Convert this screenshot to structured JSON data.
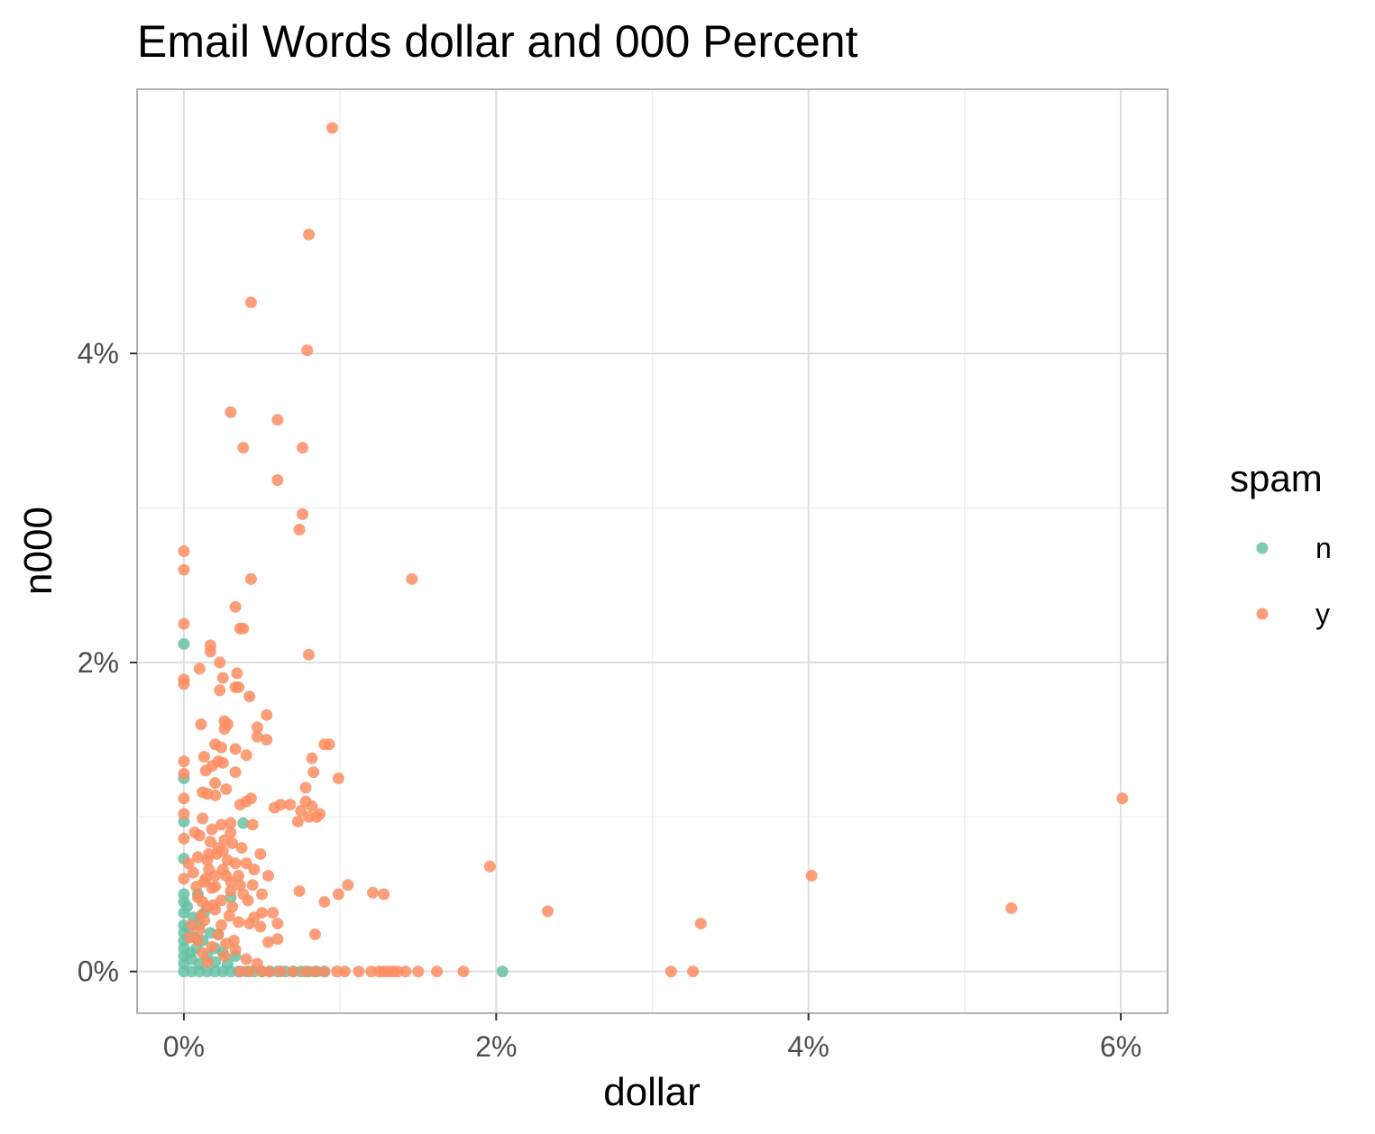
{
  "chart_data": {
    "type": "scatter",
    "title": "Email Words dollar and 000 Percent",
    "xlabel": "dollar",
    "ylabel": "n000",
    "xlim": [
      -0.3,
      6.3
    ],
    "ylim": [
      -0.27,
      5.71
    ],
    "x_ticks": [
      0,
      2,
      4,
      6
    ],
    "x_tick_labels": [
      "0%",
      "2%",
      "4%",
      "6%"
    ],
    "y_ticks": [
      0,
      2,
      4
    ],
    "y_tick_labels": [
      "0%",
      "2%",
      "4%"
    ],
    "grid": true,
    "legend": {
      "title": "spam",
      "position": "right",
      "entries": [
        {
          "label": "n",
          "color": "#66c2a5"
        },
        {
          "label": "y",
          "color": "#fc8d62"
        }
      ]
    },
    "series": [
      {
        "name": "n",
        "color": "#66c2a5",
        "points": [
          [
            0,
            2.12
          ],
          [
            0,
            1.25
          ],
          [
            0,
            0.97
          ],
          [
            0,
            0.73
          ],
          [
            0,
            0.5
          ],
          [
            0,
            0.45
          ],
          [
            0,
            0.38
          ],
          [
            0,
            0.3
          ],
          [
            0,
            0.25
          ],
          [
            0,
            0.2
          ],
          [
            0,
            0.15
          ],
          [
            0,
            0.1
          ],
          [
            0,
            0.05
          ],
          [
            0,
            0
          ],
          [
            0.02,
            0.42
          ],
          [
            0.03,
            0.28
          ],
          [
            0.04,
            0.12
          ],
          [
            0.05,
            0.08
          ],
          [
            0.06,
            0.35
          ],
          [
            0.07,
            0.22
          ],
          [
            0.08,
            0.15
          ],
          [
            0.09,
            0.5
          ],
          [
            0.1,
            0.05
          ],
          [
            0.1,
            0.3
          ],
          [
            0.12,
            0.2
          ],
          [
            0.13,
            0.38
          ],
          [
            0.15,
            0.1
          ],
          [
            0.17,
            0.25
          ],
          [
            0.2,
            0.06
          ],
          [
            0.2,
            0.15
          ],
          [
            0.22,
            0.24
          ],
          [
            0.25,
            0.12
          ],
          [
            0.28,
            0.05
          ],
          [
            0.3,
            0.48
          ],
          [
            0.33,
            0.1
          ],
          [
            0.38,
            0.96
          ],
          [
            0.05,
            0
          ],
          [
            0.1,
            0
          ],
          [
            0.15,
            0
          ],
          [
            0.2,
            0
          ],
          [
            0.25,
            0
          ],
          [
            0.3,
            0
          ],
          [
            0.35,
            0
          ],
          [
            0.4,
            0
          ],
          [
            0.45,
            0
          ],
          [
            0.5,
            0
          ],
          [
            0.55,
            0
          ],
          [
            0.6,
            0
          ],
          [
            0.65,
            0
          ],
          [
            0.7,
            0
          ],
          [
            0.75,
            0
          ],
          [
            0.8,
            0
          ],
          [
            0.85,
            0
          ],
          [
            0.9,
            0
          ],
          [
            2.04,
            0
          ]
        ]
      },
      {
        "name": "y",
        "color": "#fc8d62",
        "points": [
          [
            0.95,
            5.46
          ],
          [
            0.8,
            4.77
          ],
          [
            0.43,
            4.33
          ],
          [
            0.79,
            4.02
          ],
          [
            0.3,
            3.62
          ],
          [
            0.6,
            3.57
          ],
          [
            0.38,
            3.39
          ],
          [
            0.76,
            3.39
          ],
          [
            0.6,
            3.18
          ],
          [
            0.76,
            2.96
          ],
          [
            0.74,
            2.86
          ],
          [
            0,
            2.72
          ],
          [
            0,
            2.6
          ],
          [
            0.43,
            2.54
          ],
          [
            1.46,
            2.54
          ],
          [
            0.33,
            2.36
          ],
          [
            0.36,
            2.22
          ],
          [
            0.38,
            2.22
          ],
          [
            0,
            2.25
          ],
          [
            0.17,
            2.11
          ],
          [
            0.17,
            2.07
          ],
          [
            0.8,
            2.05
          ],
          [
            0.23,
            2.0
          ],
          [
            0.1,
            1.96
          ],
          [
            0.34,
            1.93
          ],
          [
            0.25,
            1.9
          ],
          [
            0,
            1.89
          ],
          [
            0,
            1.86
          ],
          [
            0.33,
            1.84
          ],
          [
            0.35,
            1.84
          ],
          [
            0.23,
            1.82
          ],
          [
            0.42,
            1.78
          ],
          [
            0.53,
            1.66
          ],
          [
            0.26,
            1.62
          ],
          [
            0.28,
            1.6
          ],
          [
            0.11,
            1.6
          ],
          [
            0.47,
            1.58
          ],
          [
            0.26,
            1.57
          ],
          [
            0.47,
            1.52
          ],
          [
            0.53,
            1.5
          ],
          [
            0.9,
            1.47
          ],
          [
            0.93,
            1.47
          ],
          [
            0.2,
            1.47
          ],
          [
            0.24,
            1.45
          ],
          [
            0.33,
            1.44
          ],
          [
            0.4,
            1.4
          ],
          [
            0.13,
            1.39
          ],
          [
            0.82,
            1.38
          ],
          [
            0.22,
            1.36
          ],
          [
            0,
            1.36
          ],
          [
            0.18,
            1.33
          ],
          [
            0.25,
            1.35
          ],
          [
            0.83,
            1.29
          ],
          [
            0.33,
            1.29
          ],
          [
            0.14,
            1.3
          ],
          [
            0,
            1.28
          ],
          [
            0.99,
            1.25
          ],
          [
            0.2,
            1.22
          ],
          [
            0.27,
            1.18
          ],
          [
            0.78,
            1.19
          ],
          [
            0.12,
            1.16
          ],
          [
            0.15,
            1.15
          ],
          [
            0.2,
            1.14
          ],
          [
            0.43,
            1.12
          ],
          [
            0.4,
            1.1
          ],
          [
            0.78,
            1.1
          ],
          [
            0.82,
            1.07
          ],
          [
            0.62,
            1.08
          ],
          [
            0.68,
            1.08
          ],
          [
            0.58,
            1.06
          ],
          [
            0.36,
            1.08
          ],
          [
            0,
            1.12
          ],
          [
            6.01,
            1.12
          ],
          [
            0.75,
            1.04
          ],
          [
            0.8,
            1.0
          ],
          [
            0.87,
            1.02
          ],
          [
            0.85,
            1.0
          ],
          [
            0.73,
            0.97
          ],
          [
            0,
            1.02
          ],
          [
            0.12,
            0.99
          ],
          [
            0.3,
            0.96
          ],
          [
            0.24,
            0.95
          ],
          [
            0.44,
            0.95
          ],
          [
            0.18,
            0.92
          ],
          [
            0.3,
            0.9
          ],
          [
            0.1,
            0.88
          ],
          [
            0,
            0.86
          ],
          [
            0.17,
            0.84
          ],
          [
            0.31,
            0.83
          ],
          [
            0.37,
            0.8
          ],
          [
            0.25,
            0.78
          ],
          [
            0.21,
            0.76
          ],
          [
            0.49,
            0.76
          ],
          [
            0.09,
            0.74
          ],
          [
            0.15,
            0.72
          ],
          [
            0.33,
            0.7
          ],
          [
            0.4,
            0.7
          ],
          [
            0.16,
            0.66
          ],
          [
            0.45,
            0.66
          ],
          [
            1.96,
            0.68
          ],
          [
            0.06,
            0.64
          ],
          [
            0.2,
            0.62
          ],
          [
            0.27,
            0.62
          ],
          [
            0.54,
            0.62
          ],
          [
            4.02,
            0.62
          ],
          [
            0,
            0.6
          ],
          [
            0.13,
            0.58
          ],
          [
            0.36,
            0.56
          ],
          [
            0.44,
            0.56
          ],
          [
            1.05,
            0.56
          ],
          [
            0.18,
            0.54
          ],
          [
            0.3,
            0.52
          ],
          [
            0.74,
            0.52
          ],
          [
            1.21,
            0.51
          ],
          [
            1.28,
            0.5
          ],
          [
            0.99,
            0.5
          ],
          [
            0.5,
            0.5
          ],
          [
            0.09,
            0.48
          ],
          [
            0.24,
            0.46
          ],
          [
            0.41,
            0.46
          ],
          [
            0.9,
            0.45
          ],
          [
            0.15,
            0.42
          ],
          [
            5.3,
            0.41
          ],
          [
            0.2,
            0.4
          ],
          [
            0.5,
            0.38
          ],
          [
            2.33,
            0.39
          ],
          [
            0.29,
            0.36
          ],
          [
            0.45,
            0.35
          ],
          [
            0.57,
            0.38
          ],
          [
            0.13,
            0.33
          ],
          [
            0.35,
            0.32
          ],
          [
            0.6,
            0.31
          ],
          [
            3.31,
            0.31
          ],
          [
            0.24,
            0.3
          ],
          [
            0.42,
            0.31
          ],
          [
            0.49,
            0.29
          ],
          [
            0.1,
            0.27
          ],
          [
            0.84,
            0.24
          ],
          [
            0.22,
            0.24
          ],
          [
            0.04,
            0.22
          ],
          [
            0.32,
            0.2
          ],
          [
            0.54,
            0.19
          ],
          [
            0.6,
            0.21
          ],
          [
            0.18,
            0.16
          ],
          [
            0.33,
            0.14
          ],
          [
            0.12,
            0.12
          ],
          [
            0.26,
            0.1
          ],
          [
            0.4,
            0.08
          ],
          [
            0.15,
            0.06
          ],
          [
            0.47,
            0.05
          ],
          [
            0.05,
            0.3
          ],
          [
            0.08,
            0.55
          ],
          [
            0.03,
            0.7
          ],
          [
            0.14,
            0.6
          ],
          [
            0.2,
            0.55
          ],
          [
            0.25,
            0.66
          ],
          [
            0.28,
            0.72
          ],
          [
            0.19,
            0.43
          ],
          [
            0.11,
            0.36
          ],
          [
            0.07,
            0.9
          ],
          [
            0.22,
            0.8
          ],
          [
            0.26,
            0.85
          ],
          [
            0.16,
            0.76
          ],
          [
            0.3,
            0.58
          ],
          [
            0.35,
            0.62
          ],
          [
            0.38,
            0.5
          ],
          [
            0.12,
            0.45
          ],
          [
            0.09,
            0.2
          ],
          [
            0.27,
            0.18
          ],
          [
            0.31,
            0.42
          ],
          [
            0.36,
            0
          ],
          [
            0.42,
            0
          ],
          [
            0.5,
            0
          ],
          [
            0.55,
            0
          ],
          [
            0.62,
            0
          ],
          [
            0.7,
            0
          ],
          [
            0.78,
            0
          ],
          [
            0.84,
            0
          ],
          [
            0.9,
            0
          ],
          [
            0.98,
            0
          ],
          [
            1.03,
            0
          ],
          [
            1.12,
            0
          ],
          [
            1.2,
            0
          ],
          [
            1.25,
            0
          ],
          [
            1.28,
            0
          ],
          [
            1.31,
            0
          ],
          [
            1.34,
            0
          ],
          [
            1.37,
            0
          ],
          [
            1.42,
            0
          ],
          [
            1.5,
            0
          ],
          [
            1.62,
            0
          ],
          [
            1.79,
            0
          ],
          [
            3.12,
            0
          ],
          [
            3.26,
            0
          ]
        ]
      }
    ]
  }
}
